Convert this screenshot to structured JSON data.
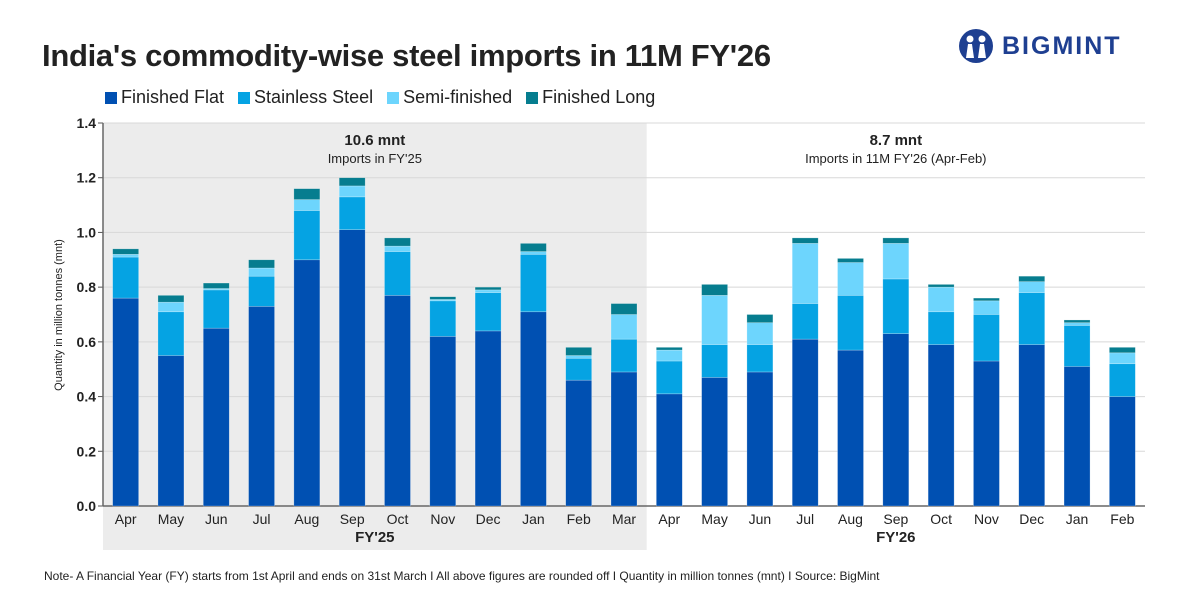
{
  "title": "India's commodity-wise steel imports in 11M FY'26",
  "logo": "BIGMINT",
  "footer": "Note- A Financial Year (FY) starts from 1st April and ends on 31st March I  All above figures are rounded off   I  Quantity in million tonnes (mnt)  I  Source: BigMint",
  "chart_data": {
    "type": "bar",
    "stacked": true,
    "title": "India's commodity-wise steel imports in 11M FY'26",
    "ylabel": "Quantity in million tonnes (mnt)",
    "ylim": [
      0,
      1.4
    ],
    "yticks": [
      "0.0",
      "0.2",
      "0.4",
      "0.6",
      "0.8",
      "1.0",
      "1.2",
      "1.4"
    ],
    "grid": true,
    "legend_position": "top-left",
    "categories": [
      "Apr",
      "May",
      "Jun",
      "Jul",
      "Aug",
      "Sep",
      "Oct",
      "Nov",
      "Dec",
      "Jan",
      "Feb",
      "Mar",
      "Apr",
      "May",
      "Jun",
      "Jul",
      "Aug",
      "Sep",
      "Oct",
      "Nov",
      "Dec",
      "Jan",
      "Feb"
    ],
    "groups": [
      {
        "label": "FY'25",
        "count": 12,
        "shaded": true,
        "total_label": "10.6 mnt",
        "subtitle": "Imports in FY'25"
      },
      {
        "label": "FY'26",
        "count": 11,
        "shaded": false,
        "total_label": "8.7 mnt",
        "subtitle": "Imports in 11M FY'26 (Apr-Feb)"
      }
    ],
    "series": [
      {
        "name": "Finished Flat",
        "color": "#0050b2",
        "values": [
          0.76,
          0.55,
          0.65,
          0.73,
          0.9,
          1.01,
          0.77,
          0.62,
          0.64,
          0.71,
          0.46,
          0.49,
          0.41,
          0.47,
          0.49,
          0.61,
          0.57,
          0.63,
          0.59,
          0.53,
          0.59,
          0.51,
          0.4
        ]
      },
      {
        "name": "Stainless Steel",
        "color": "#05a3e3",
        "values": [
          0.15,
          0.16,
          0.14,
          0.11,
          0.18,
          0.12,
          0.16,
          0.13,
          0.14,
          0.21,
          0.08,
          0.12,
          0.12,
          0.12,
          0.1,
          0.13,
          0.2,
          0.2,
          0.12,
          0.17,
          0.19,
          0.15,
          0.12
        ]
      },
      {
        "name": "Semi-finished",
        "color": "#6dd5fd",
        "values": [
          0.01,
          0.035,
          0.005,
          0.03,
          0.04,
          0.04,
          0.02,
          0.005,
          0.01,
          0.01,
          0.01,
          0.09,
          0.04,
          0.18,
          0.08,
          0.22,
          0.12,
          0.13,
          0.09,
          0.05,
          0.04,
          0.01,
          0.04
        ]
      },
      {
        "name": "Finished Long",
        "color": "#067d8f",
        "values": [
          0.02,
          0.025,
          0.02,
          0.03,
          0.04,
          0.03,
          0.03,
          0.01,
          0.01,
          0.03,
          0.03,
          0.04,
          0.01,
          0.04,
          0.03,
          0.02,
          0.015,
          0.02,
          0.01,
          0.01,
          0.02,
          0.01,
          0.02
        ]
      }
    ]
  }
}
